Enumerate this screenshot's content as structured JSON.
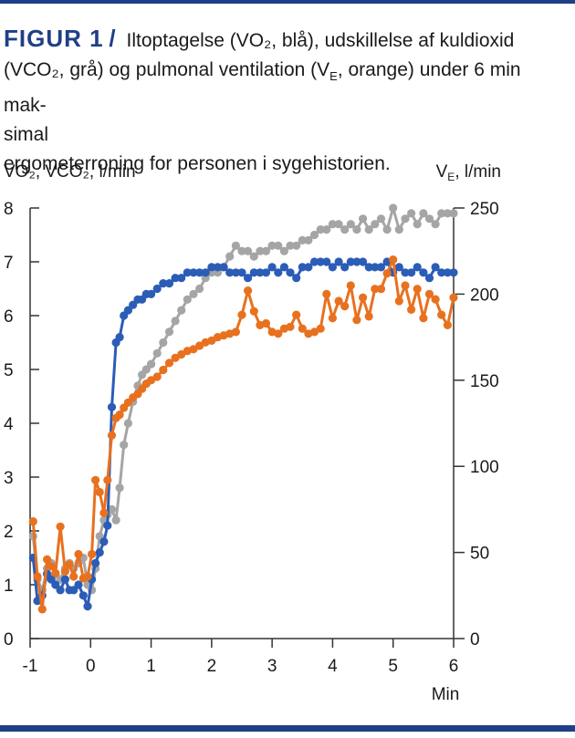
{
  "caption": {
    "figure_label": "FIGUR 1",
    "slash": "/",
    "line1": "Iltoptagelse (VO₂, blå), udskillelse af kuldioxid",
    "line2": "(VCO₂, grå) og pulmonal ventilation (V",
    "line2_sub": "E",
    "line2_end": ", orange) under 6 min mak-",
    "line3": "simal",
    "line4": "ergometerroning for personen i sygehistorien."
  },
  "chart_data": {
    "type": "line",
    "ylabel": "VO₂, VCO₂, l/min",
    "y2label_main": "V",
    "y2label_sub": "E",
    "y2label_end": ", l/min",
    "xlabel": "Min",
    "xlim": [
      -1,
      6
    ],
    "ylim": [
      0,
      8
    ],
    "y2lim": [
      0,
      250
    ],
    "x_ticks": [
      "-1",
      "0",
      "1",
      "2",
      "3",
      "4",
      "5",
      "6"
    ],
    "y_ticks": [
      "0",
      "1",
      "2",
      "3",
      "4",
      "5",
      "6",
      "7",
      "8"
    ],
    "y2_ticks": [
      "0",
      "50",
      "100",
      "150",
      "200",
      "250"
    ],
    "colors": {
      "vo2": "#2b5cb6",
      "vco2": "#a5a5a5",
      "ve": "#e8711f"
    },
    "series": [
      {
        "key": "vco2",
        "axis": "left",
        "x": [
          -0.95,
          -0.88,
          -0.8,
          -0.72,
          -0.65,
          -0.58,
          -0.5,
          -0.42,
          -0.35,
          -0.28,
          -0.2,
          -0.12,
          -0.05,
          0.02,
          0.08,
          0.15,
          0.22,
          0.28,
          0.35,
          0.42,
          0.48,
          0.55,
          0.62,
          0.7,
          0.78,
          0.85,
          0.92,
          1.0,
          1.1,
          1.2,
          1.3,
          1.4,
          1.5,
          1.6,
          1.7,
          1.8,
          1.9,
          2.0,
          2.1,
          2.2,
          2.3,
          2.4,
          2.5,
          2.6,
          2.7,
          2.8,
          2.9,
          3.0,
          3.1,
          3.2,
          3.3,
          3.4,
          3.5,
          3.6,
          3.7,
          3.8,
          3.9,
          4.0,
          4.1,
          4.2,
          4.3,
          4.4,
          4.5,
          4.6,
          4.7,
          4.8,
          4.9,
          5.0,
          5.1,
          5.2,
          5.3,
          5.4,
          5.5,
          5.6,
          5.7,
          5.8,
          5.9,
          6.0
        ],
        "y": [
          1.9,
          1.1,
          0.9,
          1.3,
          1.4,
          1.2,
          1.1,
          1.3,
          1.4,
          1.3,
          1.4,
          1.5,
          1.0,
          0.9,
          1.3,
          1.9,
          2.2,
          2.3,
          2.4,
          2.2,
          2.8,
          3.6,
          4.0,
          4.4,
          4.7,
          4.9,
          5.0,
          5.1,
          5.3,
          5.5,
          5.7,
          5.9,
          6.1,
          6.3,
          6.4,
          6.5,
          6.7,
          6.8,
          6.8,
          6.9,
          7.1,
          7.3,
          7.2,
          7.2,
          7.1,
          7.2,
          7.2,
          7.3,
          7.3,
          7.2,
          7.3,
          7.3,
          7.4,
          7.4,
          7.5,
          7.6,
          7.6,
          7.7,
          7.7,
          7.6,
          7.7,
          7.6,
          7.8,
          7.6,
          7.7,
          7.8,
          7.6,
          8.0,
          7.6,
          7.8,
          7.9,
          7.7,
          7.9,
          7.8,
          7.7,
          7.9,
          7.9,
          7.9
        ]
      },
      {
        "key": "vo2",
        "axis": "left",
        "x": [
          -0.95,
          -0.88,
          -0.8,
          -0.72,
          -0.65,
          -0.58,
          -0.5,
          -0.42,
          -0.35,
          -0.28,
          -0.2,
          -0.12,
          -0.05,
          0.02,
          0.08,
          0.15,
          0.22,
          0.28,
          0.35,
          0.42,
          0.48,
          0.55,
          0.62,
          0.7,
          0.78,
          0.85,
          0.92,
          1.0,
          1.1,
          1.2,
          1.3,
          1.4,
          1.5,
          1.6,
          1.7,
          1.8,
          1.9,
          2.0,
          2.1,
          2.2,
          2.3,
          2.4,
          2.5,
          2.6,
          2.7,
          2.8,
          2.9,
          3.0,
          3.1,
          3.2,
          3.3,
          3.4,
          3.5,
          3.6,
          3.7,
          3.8,
          3.9,
          4.0,
          4.1,
          4.2,
          4.3,
          4.4,
          4.5,
          4.6,
          4.7,
          4.8,
          4.9,
          5.0,
          5.1,
          5.2,
          5.3,
          5.4,
          5.5,
          5.6,
          5.7,
          5.8,
          5.9,
          6.0
        ],
        "y": [
          1.5,
          0.7,
          0.8,
          1.2,
          1.1,
          1.0,
          0.9,
          1.1,
          0.9,
          0.9,
          1.0,
          0.8,
          0.6,
          1.1,
          1.4,
          1.6,
          1.8,
          2.1,
          4.3,
          5.5,
          5.6,
          6.0,
          6.1,
          6.2,
          6.3,
          6.3,
          6.4,
          6.4,
          6.5,
          6.6,
          6.6,
          6.7,
          6.7,
          6.8,
          6.8,
          6.8,
          6.8,
          6.9,
          6.9,
          6.9,
          6.8,
          6.8,
          6.8,
          6.7,
          6.8,
          6.8,
          6.8,
          6.9,
          6.8,
          6.9,
          6.8,
          6.7,
          6.9,
          6.9,
          7.0,
          7.0,
          7.0,
          6.9,
          7.0,
          6.9,
          7.0,
          7.0,
          7.0,
          6.9,
          6.9,
          6.9,
          7.0,
          6.8,
          6.9,
          6.8,
          6.8,
          6.9,
          6.8,
          6.7,
          6.9,
          6.8,
          6.8,
          6.8
        ]
      },
      {
        "key": "ve",
        "axis": "right",
        "x": [
          -0.95,
          -0.88,
          -0.8,
          -0.72,
          -0.65,
          -0.58,
          -0.5,
          -0.42,
          -0.35,
          -0.28,
          -0.2,
          -0.12,
          -0.05,
          0.02,
          0.08,
          0.15,
          0.22,
          0.28,
          0.35,
          0.42,
          0.48,
          0.55,
          0.62,
          0.7,
          0.78,
          0.85,
          0.92,
          1.0,
          1.1,
          1.2,
          1.3,
          1.4,
          1.5,
          1.6,
          1.7,
          1.8,
          1.9,
          2.0,
          2.1,
          2.2,
          2.3,
          2.4,
          2.5,
          2.6,
          2.7,
          2.8,
          2.9,
          3.0,
          3.1,
          3.2,
          3.3,
          3.4,
          3.5,
          3.6,
          3.7,
          3.8,
          3.9,
          4.0,
          4.1,
          4.2,
          4.3,
          4.4,
          4.5,
          4.6,
          4.7,
          4.8,
          4.9,
          5.0,
          5.1,
          5.2,
          5.3,
          5.4,
          5.5,
          5.6,
          5.7,
          5.8,
          5.9,
          6.0
        ],
        "y": [
          68,
          36,
          17,
          46,
          42,
          38,
          65,
          39,
          43,
          36,
          49,
          35,
          36,
          49,
          92,
          85,
          73,
          92,
          118,
          128,
          130,
          134,
          137,
          140,
          142,
          145,
          148,
          150,
          152,
          156,
          160,
          163,
          165,
          167,
          168,
          170,
          172,
          173,
          175,
          176,
          177,
          178,
          188,
          202,
          190,
          182,
          183,
          178,
          177,
          180,
          181,
          188,
          180,
          177,
          178,
          180,
          200,
          186,
          196,
          193,
          205,
          185,
          198,
          187,
          203,
          203,
          212,
          220,
          196,
          205,
          191,
          203,
          186,
          200,
          197,
          188,
          182,
          198
        ]
      }
    ]
  }
}
